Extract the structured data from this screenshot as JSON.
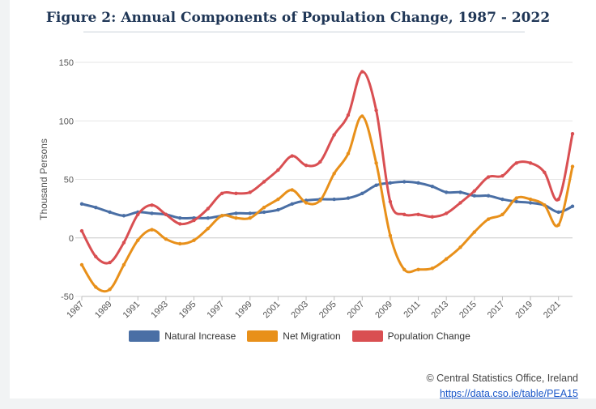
{
  "chart_data": {
    "type": "line",
    "title": "Figure 2: Annual Components of Population Change, 1987 - 2022",
    "ylabel": "Thousand Persons",
    "xlabel": "",
    "ylim": [
      -50,
      150
    ],
    "yticks": [
      -50,
      0,
      50,
      100,
      150
    ],
    "x": [
      1987,
      1988,
      1989,
      1990,
      1991,
      1992,
      1993,
      1994,
      1995,
      1996,
      1997,
      1998,
      1999,
      2000,
      2001,
      2002,
      2003,
      2004,
      2005,
      2006,
      2007,
      2008,
      2009,
      2010,
      2011,
      2012,
      2013,
      2014,
      2015,
      2016,
      2017,
      2018,
      2019,
      2020,
      2021,
      2022
    ],
    "x_tick_labels": [
      "1987",
      "1989",
      "1991",
      "1993",
      "1995",
      "1997",
      "1999",
      "2001",
      "2003",
      "2005",
      "2007",
      "2009",
      "2011",
      "2013",
      "2015",
      "2017",
      "2019",
      "2021"
    ],
    "series": [
      {
        "name": "Natural Increase",
        "color": "#4a6fa5",
        "values": [
          29,
          26,
          22,
          19,
          22,
          21,
          20,
          17,
          17,
          17,
          19,
          21,
          21,
          22,
          24,
          29,
          32,
          33,
          33,
          34,
          38,
          45,
          47,
          48,
          47,
          44,
          39,
          39,
          36,
          36,
          33,
          31,
          30,
          28,
          22,
          27
        ]
      },
      {
        "name": "Net Migration",
        "color": "#e8901a",
        "values": [
          -23,
          -42,
          -44,
          -23,
          -2,
          7,
          -1,
          -5,
          -2,
          8,
          19,
          17,
          17,
          26,
          33,
          41,
          30,
          32,
          55,
          72,
          104,
          64,
          2,
          -27,
          -27,
          -26,
          -18,
          -8,
          5,
          16,
          20,
          34,
          33,
          28,
          11,
          61
        ]
      },
      {
        "name": "Population Change",
        "color": "#d94f52",
        "values": [
          6,
          -16,
          -21,
          -4,
          20,
          28,
          20,
          12,
          15,
          25,
          38,
          38,
          39,
          48,
          58,
          70,
          62,
          65,
          88,
          105,
          142,
          109,
          31,
          20,
          20,
          18,
          21,
          30,
          40,
          52,
          53,
          64,
          64,
          56,
          33,
          89
        ]
      }
    ]
  },
  "credit": {
    "copyright": "© Central Statistics Office, Ireland",
    "link": "https://data.cso.ie/table/PEA15"
  }
}
